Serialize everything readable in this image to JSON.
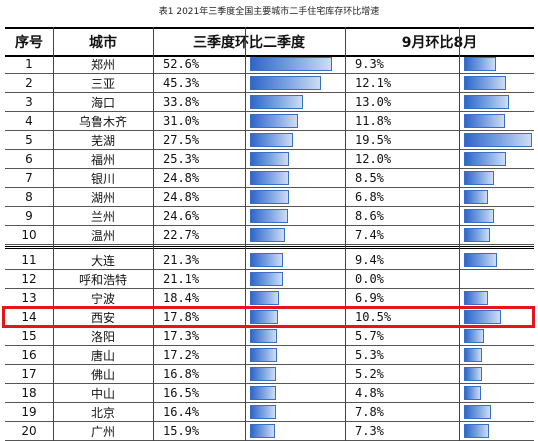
{
  "caption": "表1  2021年三季度全国主要城市二手住宅库存环比增速",
  "headers": {
    "no": "序号",
    "city": "城市",
    "q3": "三季度环比二季度",
    "sep": "9月环比8月"
  },
  "chart_data": {
    "type": "table",
    "title": "表1  2021年三季度全国主要城市二手住宅库存环比增速",
    "columns": [
      "序号",
      "城市",
      "三季度环比二季度",
      "9月环比8月"
    ],
    "rows": [
      {
        "no": "1",
        "city": "郑州",
        "q3": "52.6%",
        "sep": "9.3%",
        "q3_val": 52.6,
        "sep_val": 9.3
      },
      {
        "no": "2",
        "city": "三亚",
        "q3": "45.3%",
        "sep": "12.1%",
        "q3_val": 45.3,
        "sep_val": 12.1
      },
      {
        "no": "3",
        "city": "海口",
        "q3": "33.8%",
        "sep": "13.0%",
        "q3_val": 33.8,
        "sep_val": 13.0
      },
      {
        "no": "4",
        "city": "乌鲁木齐",
        "q3": "31.0%",
        "sep": "11.8%",
        "q3_val": 31.0,
        "sep_val": 11.8
      },
      {
        "no": "5",
        "city": "芜湖",
        "q3": "27.5%",
        "sep": "19.5%",
        "q3_val": 27.5,
        "sep_val": 19.5
      },
      {
        "no": "6",
        "city": "福州",
        "q3": "25.3%",
        "sep": "12.0%",
        "q3_val": 25.3,
        "sep_val": 12.0
      },
      {
        "no": "7",
        "city": "银川",
        "q3": "24.8%",
        "sep": "8.5%",
        "q3_val": 24.8,
        "sep_val": 8.5
      },
      {
        "no": "8",
        "city": "湖州",
        "q3": "24.8%",
        "sep": "6.8%",
        "q3_val": 24.8,
        "sep_val": 6.8
      },
      {
        "no": "9",
        "city": "兰州",
        "q3": "24.6%",
        "sep": "8.6%",
        "q3_val": 24.6,
        "sep_val": 8.6
      },
      {
        "no": "10",
        "city": "温州",
        "q3": "22.7%",
        "sep": "7.4%",
        "q3_val": 22.7,
        "sep_val": 7.4
      },
      {
        "no": "11",
        "city": "大连",
        "q3": "21.3%",
        "sep": "9.4%",
        "q3_val": 21.3,
        "sep_val": 9.4
      },
      {
        "no": "12",
        "city": "呼和浩特",
        "q3": "21.1%",
        "sep": "0.0%",
        "q3_val": 21.1,
        "sep_val": 0.0
      },
      {
        "no": "13",
        "city": "宁波",
        "q3": "18.4%",
        "sep": "6.9%",
        "q3_val": 18.4,
        "sep_val": 6.9
      },
      {
        "no": "14",
        "city": "西安",
        "q3": "17.8%",
        "sep": "10.5%",
        "q3_val": 17.8,
        "sep_val": 10.5
      },
      {
        "no": "15",
        "city": "洛阳",
        "q3": "17.3%",
        "sep": "5.7%",
        "q3_val": 17.3,
        "sep_val": 5.7
      },
      {
        "no": "16",
        "city": "唐山",
        "q3": "17.2%",
        "sep": "5.3%",
        "q3_val": 17.2,
        "sep_val": 5.3
      },
      {
        "no": "17",
        "city": "佛山",
        "q3": "16.8%",
        "sep": "5.2%",
        "q3_val": 16.8,
        "sep_val": 5.2
      },
      {
        "no": "18",
        "city": "中山",
        "q3": "16.5%",
        "sep": "4.8%",
        "q3_val": 16.5,
        "sep_val": 4.8
      },
      {
        "no": "19",
        "city": "北京",
        "q3": "16.4%",
        "sep": "7.8%",
        "q3_val": 16.4,
        "sep_val": 7.8
      },
      {
        "no": "20",
        "city": "广州",
        "q3": "15.9%",
        "sep": "7.3%",
        "q3_val": 15.9,
        "sep_val": 7.3
      }
    ],
    "highlighted_row": "14",
    "q3_bar_max": 52.6,
    "sep_bar_max": 19.5
  },
  "colors": {
    "bar": "#2f66c8",
    "highlight": "#e3161f"
  }
}
